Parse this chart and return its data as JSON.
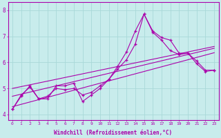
{
  "xlabel": "Windchill (Refroidissement éolien,°C)",
  "bg_color": "#c8ecec",
  "line_color": "#aa00aa",
  "grid_color": "#a8d8d8",
  "xlim": [
    -0.5,
    23.5
  ],
  "ylim": [
    3.8,
    8.3
  ],
  "yticks": [
    4,
    5,
    6,
    7,
    8
  ],
  "xticks": [
    0,
    1,
    2,
    3,
    4,
    5,
    6,
    7,
    8,
    9,
    10,
    11,
    12,
    13,
    14,
    15,
    16,
    17,
    18,
    19,
    20,
    21,
    22,
    23
  ],
  "hours": [
    0,
    1,
    2,
    3,
    4,
    5,
    6,
    7,
    8,
    9,
    10,
    11,
    12,
    13,
    14,
    15,
    16,
    17,
    18,
    19,
    20,
    21,
    22,
    23
  ],
  "line1": [
    4.2,
    4.7,
    5.1,
    4.6,
    4.6,
    5.1,
    5.1,
    5.2,
    4.5,
    4.75,
    5.0,
    5.35,
    5.85,
    6.4,
    7.2,
    7.85,
    7.2,
    6.95,
    6.85,
    6.35,
    6.35,
    6.05,
    5.7,
    5.7
  ],
  "line2": [
    4.2,
    4.75,
    5.05,
    4.6,
    4.7,
    5.0,
    4.95,
    5.0,
    4.75,
    4.85,
    5.1,
    5.35,
    5.75,
    6.1,
    6.7,
    7.85,
    7.15,
    6.85,
    6.45,
    6.3,
    6.35,
    5.95,
    5.65,
    5.7
  ],
  "trend1": [
    4.3,
    4.39,
    4.48,
    4.57,
    4.66,
    4.75,
    4.84,
    4.93,
    5.02,
    5.11,
    5.2,
    5.29,
    5.38,
    5.47,
    5.56,
    5.65,
    5.74,
    5.83,
    5.92,
    6.01,
    6.1,
    6.19,
    6.28,
    6.37
  ],
  "trend2": [
    4.7,
    4.78,
    4.86,
    4.94,
    5.02,
    5.1,
    5.18,
    5.26,
    5.34,
    5.42,
    5.5,
    5.58,
    5.66,
    5.74,
    5.82,
    5.9,
    5.98,
    6.06,
    6.14,
    6.22,
    6.3,
    6.38,
    6.46,
    6.54
  ],
  "trend3": [
    5.0,
    5.07,
    5.14,
    5.21,
    5.28,
    5.35,
    5.42,
    5.49,
    5.56,
    5.63,
    5.7,
    5.77,
    5.84,
    5.91,
    5.98,
    6.05,
    6.12,
    6.19,
    6.26,
    6.33,
    6.4,
    6.47,
    6.54,
    6.61
  ]
}
